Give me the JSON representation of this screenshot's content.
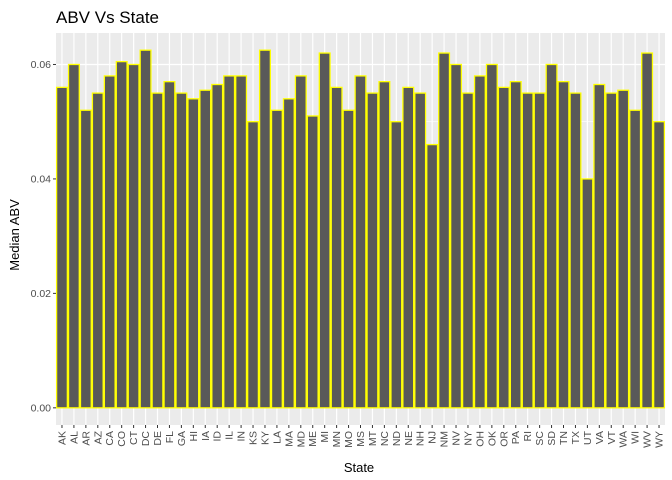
{
  "chart_data": {
    "type": "bar",
    "title": "ABV Vs State",
    "xlabel": "State",
    "ylabel": "Median ABV",
    "ylim": [
      -0.003,
      0.0655
    ],
    "yticks": [
      0.0,
      0.02,
      0.04,
      0.06
    ],
    "ytick_labels": [
      "0.00",
      "0.02",
      "0.04",
      "0.06"
    ],
    "grid": true,
    "legend": "none",
    "bar_fill": "#595959",
    "bar_outline": "#ffff00",
    "panel_background": "#ebebeb",
    "gridline_color": "#ffffff",
    "categories": [
      "AK",
      "AL",
      "AR",
      "AZ",
      "CA",
      "CO",
      "CT",
      "DC",
      "DE",
      "FL",
      "GA",
      "HI",
      "IA",
      "ID",
      "IL",
      "IN",
      "KS",
      "KY",
      "LA",
      "MA",
      "MD",
      "ME",
      "MI",
      "MN",
      "MO",
      "MS",
      "MT",
      "NC",
      "ND",
      "NE",
      "NH",
      "NJ",
      "NM",
      "NV",
      "NY",
      "OH",
      "OK",
      "OR",
      "PA",
      "RI",
      "SC",
      "SD",
      "TN",
      "TX",
      "UT",
      "VA",
      "VT",
      "WA",
      "WI",
      "WV",
      "WY"
    ],
    "values": [
      0.056,
      0.06,
      0.052,
      0.055,
      0.058,
      0.0605,
      0.06,
      0.0625,
      0.055,
      0.057,
      0.055,
      0.054,
      0.0555,
      0.0565,
      0.058,
      0.058,
      0.05,
      0.0625,
      0.052,
      0.054,
      0.058,
      0.051,
      0.062,
      0.056,
      0.052,
      0.058,
      0.055,
      0.057,
      0.05,
      0.056,
      0.055,
      0.046,
      0.062,
      0.06,
      0.055,
      0.058,
      0.06,
      0.056,
      0.057,
      0.055,
      0.055,
      0.06,
      0.057,
      0.055,
      0.04,
      0.0565,
      0.055,
      0.0555,
      0.052,
      0.062,
      0.05
    ]
  }
}
